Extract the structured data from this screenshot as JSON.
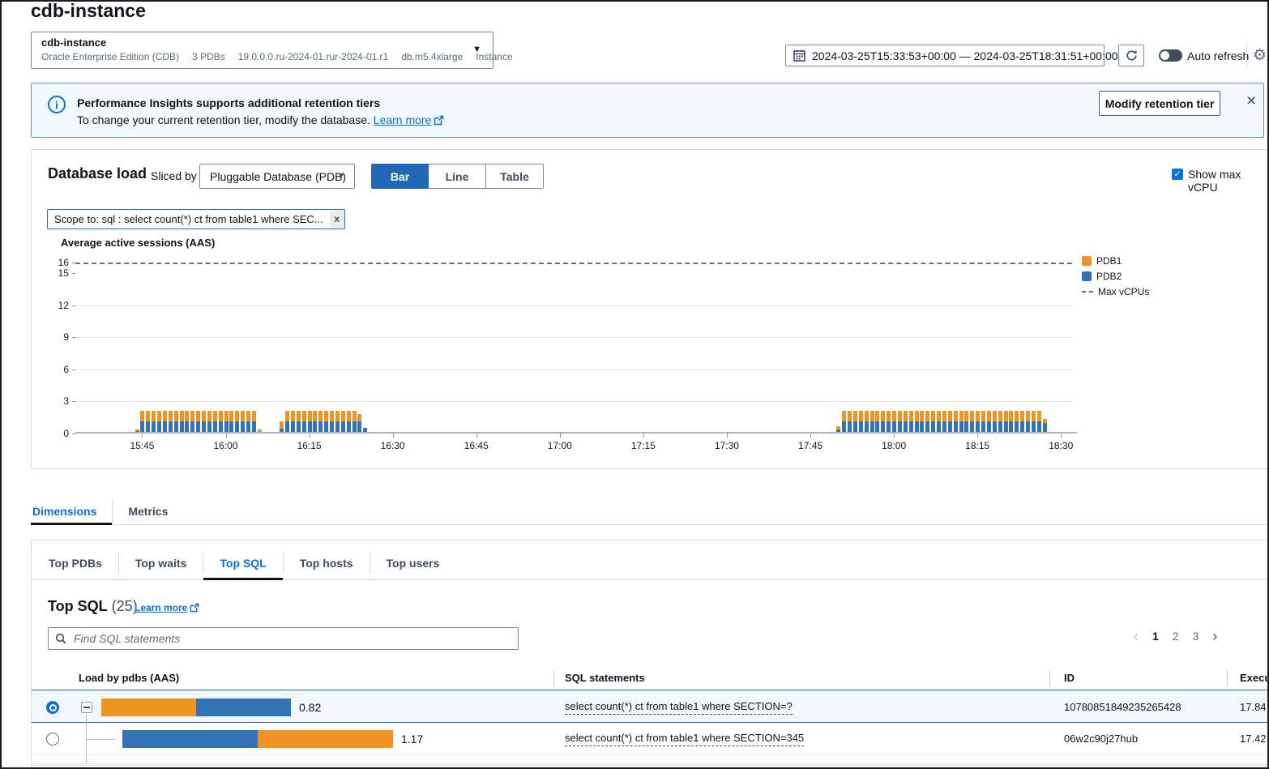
{
  "page": {
    "title": "cdb-instance"
  },
  "icons": {
    "gear": "⚙",
    "close": "×",
    "caret_down": "▼",
    "check": "✓",
    "prev": "‹",
    "next": "›",
    "scope_close": "x"
  },
  "instance_selector": {
    "name": "cdb-instance",
    "details": [
      "Oracle Enterprise Edition (CDB)",
      "3 PDBs",
      "19.0.0.0.ru-2024-01.rur-2024-01.r1",
      "db.m5.4xlarge",
      "Instance"
    ]
  },
  "time_controls": {
    "range": "2024-03-25T15:33:53+00:00 — 2024-03-25T18:31:51+00:00",
    "auto_refresh_label": "Auto refresh"
  },
  "banner": {
    "title": "Performance Insights supports additional retention tiers",
    "body": "To change your current retention tier, modify the database.",
    "link": "Learn more",
    "button": "Modify retention tier"
  },
  "database_load": {
    "heading": "Database load",
    "sliced_by_label": "Sliced by",
    "slice_value": "Pluggable Database (PDB)",
    "view_toggle": [
      "Bar",
      "Line",
      "Table"
    ],
    "active_view": "Bar",
    "show_max_vcpu_label": "Show max vCPU",
    "show_max_vcpu_checked": true,
    "scope_tag": "Scope to: sql : select count(*) ct from table1 where SEC..."
  },
  "colors": {
    "PDB1": "#ef9325",
    "PDB2": "#3273b5",
    "accent": "#0972d3",
    "max_line": "#687078"
  },
  "chart_data": {
    "type": "bar",
    "stacked": true,
    "title": "Average active sessions (AAS)",
    "ylabel": "Average active sessions (AAS)",
    "ylim": [
      0,
      16
    ],
    "y_ticks": [
      16,
      15,
      12,
      9,
      6,
      3,
      0
    ],
    "gridline_values": [
      3,
      6,
      9,
      12
    ],
    "max_vcpus": 16,
    "x_range": [
      "15:33",
      "18:32"
    ],
    "x_ticks": [
      "15:45",
      "16:00",
      "16:15",
      "16:30",
      "16:45",
      "17:00",
      "17:15",
      "17:30",
      "17:45",
      "18:00",
      "18:15",
      "18:30"
    ],
    "legend": [
      {
        "label": "PDB1",
        "series": "PDB1",
        "type": "box"
      },
      {
        "label": "PDB2",
        "series": "PDB2",
        "type": "box"
      },
      {
        "label": "Max vCPUs",
        "type": "dash"
      }
    ],
    "bars_series_bottom_to_top": [
      "PDB2",
      "PDB1"
    ],
    "bars": [
      [
        "15:44",
        0.05,
        0.2
      ],
      [
        "15:45",
        0.95,
        1.05
      ],
      [
        "15:46",
        0.95,
        1.05
      ],
      [
        "15:47",
        0.95,
        1.05
      ],
      [
        "15:48",
        0.95,
        1.05
      ],
      [
        "15:49",
        0.95,
        1.05
      ],
      [
        "15:50",
        0.95,
        1.05
      ],
      [
        "15:51",
        0.95,
        1.05
      ],
      [
        "15:52",
        0.95,
        1.05
      ],
      [
        "15:53",
        0.95,
        1.05
      ],
      [
        "15:54",
        0.95,
        1.05
      ],
      [
        "15:55",
        0.95,
        1.05
      ],
      [
        "15:56",
        0.95,
        1.05
      ],
      [
        "15:57",
        0.95,
        1.05
      ],
      [
        "15:58",
        0.95,
        1.05
      ],
      [
        "15:59",
        0.95,
        1.05
      ],
      [
        "16:00",
        0.95,
        1.05
      ],
      [
        "16:01",
        0.95,
        1.05
      ],
      [
        "16:02",
        0.95,
        1.05
      ],
      [
        "16:03",
        0.95,
        1.05
      ],
      [
        "16:04",
        0.95,
        1.05
      ],
      [
        "16:05",
        0.95,
        1.05
      ],
      [
        "16:06",
        0,
        0.25
      ],
      [
        "16:10",
        0.3,
        0.65
      ],
      [
        "16:11",
        0.95,
        1.05
      ],
      [
        "16:12",
        0.95,
        1.05
      ],
      [
        "16:13",
        0.95,
        1.05
      ],
      [
        "16:14",
        0.95,
        1.05
      ],
      [
        "16:15",
        0.95,
        1.05
      ],
      [
        "16:16",
        0.95,
        1.05
      ],
      [
        "16:17",
        0.95,
        1.05
      ],
      [
        "16:18",
        0.95,
        1.05
      ],
      [
        "16:19",
        0.95,
        1.05
      ],
      [
        "16:20",
        0.95,
        1.05
      ],
      [
        "16:21",
        0.95,
        1.05
      ],
      [
        "16:22",
        0.95,
        1.05
      ],
      [
        "16:23",
        0.95,
        1.05
      ],
      [
        "16:24",
        0.95,
        0.75
      ],
      [
        "16:25",
        0.4,
        0
      ],
      [
        "17:50",
        0.2,
        0.3
      ],
      [
        "17:51",
        1,
        1
      ],
      [
        "17:52",
        1,
        1
      ],
      [
        "17:53",
        1,
        1
      ],
      [
        "17:54",
        1,
        1
      ],
      [
        "17:55",
        1,
        1
      ],
      [
        "17:56",
        1,
        1
      ],
      [
        "17:57",
        1,
        1
      ],
      [
        "17:58",
        1,
        1
      ],
      [
        "17:59",
        1,
        1
      ],
      [
        "18:00",
        1,
        1
      ],
      [
        "18:01",
        1,
        1
      ],
      [
        "18:02",
        1,
        1
      ],
      [
        "18:03",
        1,
        1
      ],
      [
        "18:04",
        1,
        1
      ],
      [
        "18:05",
        1,
        1
      ],
      [
        "18:06",
        1,
        1
      ],
      [
        "18:07",
        1,
        1
      ],
      [
        "18:08",
        1,
        1
      ],
      [
        "18:09",
        1,
        1
      ],
      [
        "18:10",
        1,
        1
      ],
      [
        "18:11",
        1,
        1
      ],
      [
        "18:12",
        1,
        1
      ],
      [
        "18:13",
        1,
        1
      ],
      [
        "18:14",
        1,
        1
      ],
      [
        "18:15",
        1,
        1
      ],
      [
        "18:16",
        1,
        1
      ],
      [
        "18:17",
        1,
        1
      ],
      [
        "18:18",
        1,
        1
      ],
      [
        "18:19",
        1,
        1
      ],
      [
        "18:20",
        1,
        1
      ],
      [
        "18:21",
        1,
        1
      ],
      [
        "18:22",
        1,
        1
      ],
      [
        "18:23",
        1,
        1
      ],
      [
        "18:24",
        1,
        1
      ],
      [
        "18:25",
        1,
        1
      ],
      [
        "18:26",
        1,
        1
      ],
      [
        "18:27",
        0.85,
        0.35
      ]
    ]
  },
  "tabs": {
    "items": [
      "Dimensions",
      "Metrics"
    ],
    "active": "Dimensions"
  },
  "dimension_tabs": {
    "items": [
      "Top PDBs",
      "Top waits",
      "Top SQL",
      "Top hosts",
      "Top users"
    ],
    "active": "Top SQL"
  },
  "top_sql": {
    "heading": "Top SQL",
    "count": "(25)",
    "learn_more": "Learn more",
    "search_placeholder": "Find SQL statements",
    "pagination": [
      "1",
      "2",
      "3"
    ],
    "current_page": "1"
  },
  "table": {
    "columns": [
      "Load by pdbs (AAS)",
      "SQL statements",
      "ID",
      "Execu"
    ],
    "rows": [
      {
        "selected": true,
        "expander": true,
        "indent": 0,
        "segments": [
          {
            "series": "PDB1",
            "aas": 0.41
          },
          {
            "series": "PDB2",
            "aas": 0.41
          }
        ],
        "value": "0.82",
        "sql": "select count(*) ct from table1 where SECTION=?",
        "id": "10780851849235265428",
        "exec": "17.84"
      },
      {
        "selected": false,
        "expander": false,
        "indent": 1,
        "segments": [
          {
            "series": "PDB2",
            "aas": 0.585
          },
          {
            "series": "PDB1",
            "aas": 0.585
          }
        ],
        "value": "1.17",
        "sql": "select count(*) ct from table1 where SECTION=345",
        "id": "06w2c90j27hub",
        "exec": "17.42"
      }
    ]
  }
}
